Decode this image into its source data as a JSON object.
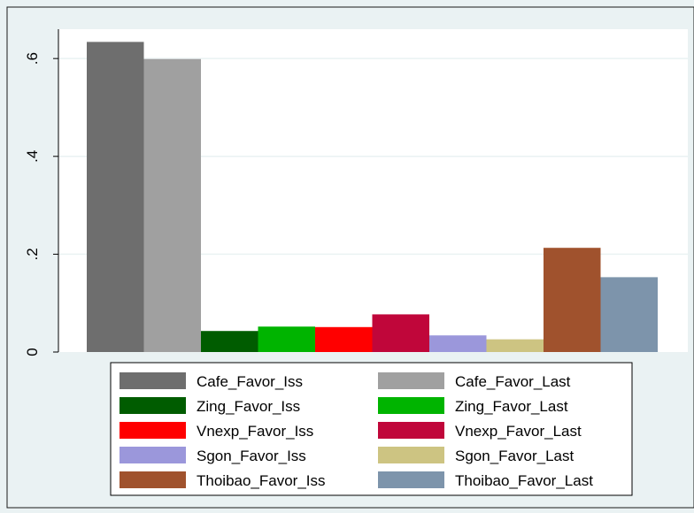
{
  "chart_data": {
    "type": "bar",
    "title": "",
    "xlabel": "",
    "ylabel": "",
    "ylim": [
      0,
      0.66
    ],
    "yticks": [
      {
        "value": 0,
        "label": "0"
      },
      {
        "value": 0.2,
        "label": ".2"
      },
      {
        "value": 0.4,
        "label": ".4"
      },
      {
        "value": 0.6,
        "label": ".6"
      }
    ],
    "grid": true,
    "legend_position": "bottom",
    "series": [
      {
        "name": "Cafe_Favor_Iss",
        "value": 0.634,
        "color": "#6e6e6e"
      },
      {
        "name": "Cafe_Favor_Last",
        "value": 0.599,
        "color": "#a0a0a0"
      },
      {
        "name": "Zing_Favor_Iss",
        "value": 0.043,
        "color": "#005c00"
      },
      {
        "name": "Zing_Favor_Last",
        "value": 0.052,
        "color": "#00b400"
      },
      {
        "name": "Vnexp_Favor_Iss",
        "value": 0.051,
        "color": "#ff0000"
      },
      {
        "name": "Vnexp_Favor_Last",
        "value": 0.077,
        "color": "#c0063a"
      },
      {
        "name": "Sgon_Favor_Iss",
        "value": 0.034,
        "color": "#9b97db"
      },
      {
        "name": "Sgon_Favor_Last",
        "value": 0.026,
        "color": "#cdc482"
      },
      {
        "name": "Thoibao_Favor_Iss",
        "value": 0.213,
        "color": "#a0522d"
      },
      {
        "name": "Thoibao_Favor_Last",
        "value": 0.153,
        "color": "#7d94ab"
      }
    ]
  }
}
